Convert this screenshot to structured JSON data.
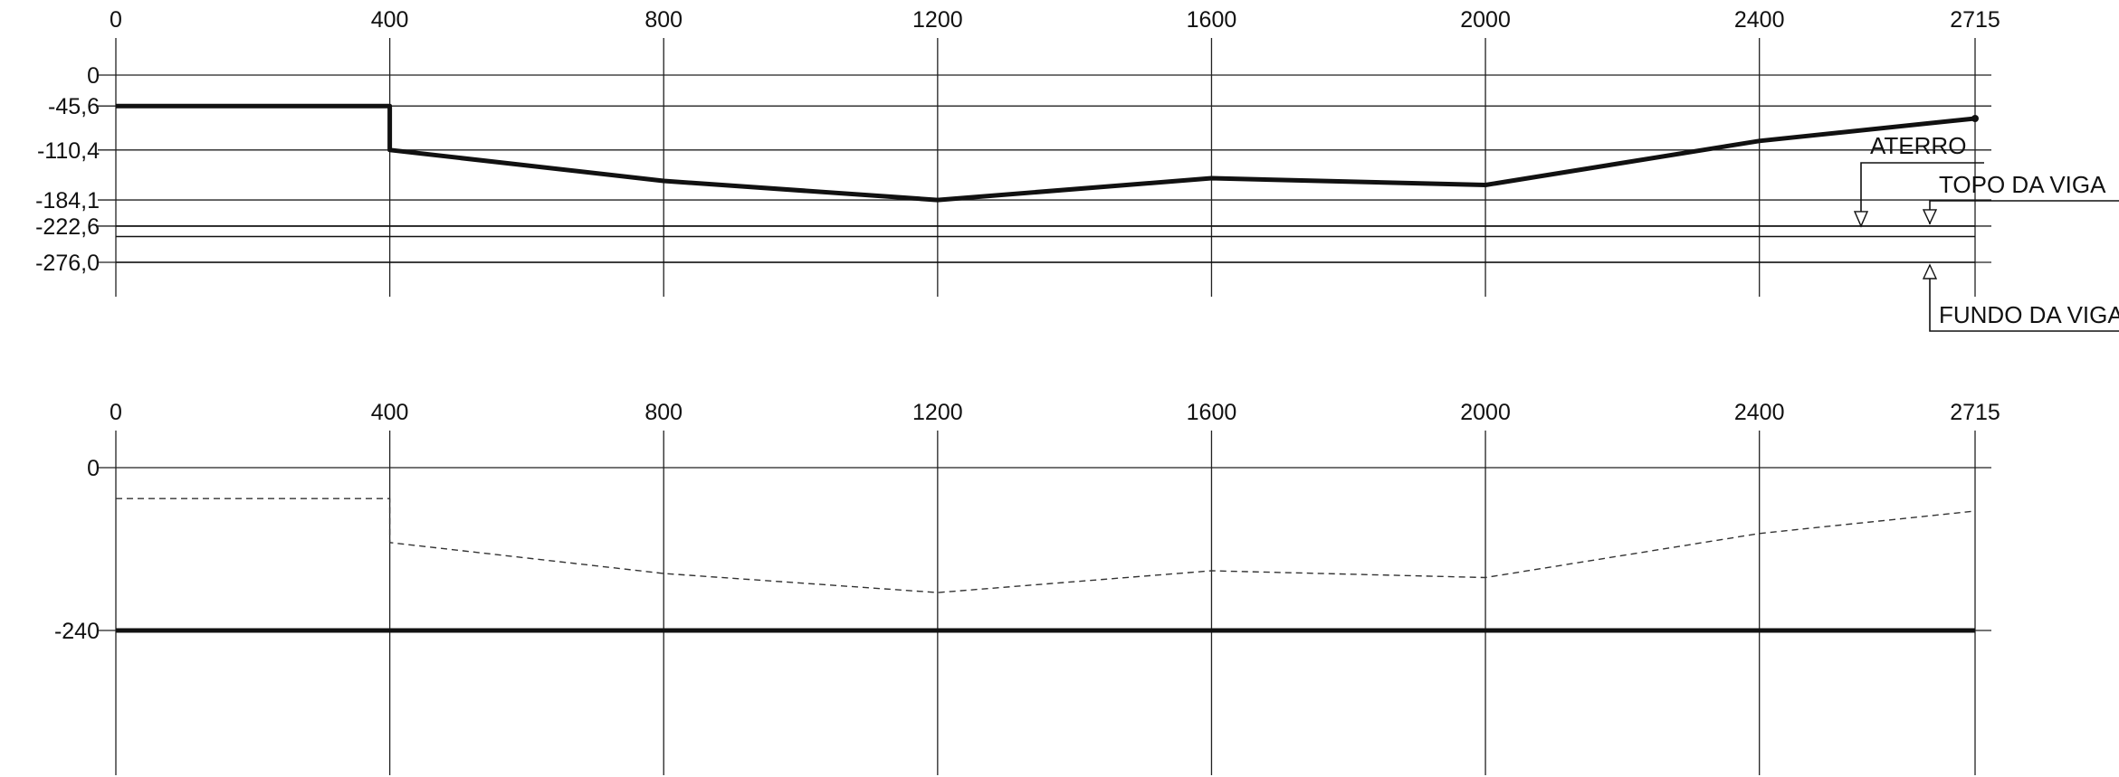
{
  "chart_data": [
    {
      "type": "line",
      "title": "",
      "xlabel": "",
      "ylabel": "",
      "xlim": [
        0,
        2715
      ],
      "ylim": [
        -276.0,
        0
      ],
      "x_ticks": [
        "0",
        "400",
        "800",
        "1200",
        "1600",
        "2000",
        "2400",
        "2715"
      ],
      "y_ticks": [
        {
          "value": 0,
          "label": "0"
        },
        {
          "value": -45.6,
          "label": "-45,6"
        },
        {
          "value": -110.4,
          "label": "-110,4"
        },
        {
          "value": -184.1,
          "label": "-184,1"
        },
        {
          "value": -222.6,
          "label": "-222,6"
        },
        {
          "value": -276.0,
          "label": "-276,0"
        }
      ],
      "series": [
        {
          "style": "bold-solid",
          "points": [
            [
              0,
              -45.6
            ],
            [
              400,
              -45.6
            ],
            [
              400,
              -110.4
            ],
            [
              800,
              -156
            ],
            [
              1200,
              -184.1
            ],
            [
              1600,
              -152
            ],
            [
              2000,
              -162
            ],
            [
              2400,
              -97
            ],
            [
              2715,
              -64
            ]
          ]
        },
        {
          "style": "solid",
          "points": [
            [
              0,
              -222.6
            ],
            [
              2715,
              -222.6
            ]
          ]
        },
        {
          "style": "solid",
          "points": [
            [
              0,
              -238
            ],
            [
              2715,
              -238
            ]
          ]
        },
        {
          "style": "solid",
          "points": [
            [
              0,
              -276.0
            ],
            [
              2715,
              -276.0
            ]
          ]
        }
      ],
      "annotations": [
        {
          "text": "ATERRO"
        },
        {
          "text": "TOPO DA VIGA"
        },
        {
          "text": "FUNDO DA VIGA"
        }
      ]
    },
    {
      "type": "line",
      "title": "",
      "xlabel": "",
      "ylabel": "",
      "xlim": [
        0,
        2715
      ],
      "ylim": [
        -240,
        0
      ],
      "x_ticks": [
        "0",
        "400",
        "800",
        "1200",
        "1600",
        "2000",
        "2400",
        "2715"
      ],
      "y_ticks": [
        {
          "value": 0,
          "label": "0"
        },
        {
          "value": -240,
          "label": "-240"
        }
      ],
      "series": [
        {
          "style": "dashed",
          "points": [
            [
              0,
              -45.6
            ],
            [
              400,
              -45.6
            ],
            [
              400,
              -110.4
            ],
            [
              800,
              -156
            ],
            [
              1200,
              -184.1
            ],
            [
              1600,
              -152
            ],
            [
              2000,
              -162
            ],
            [
              2400,
              -97
            ],
            [
              2715,
              -64
            ]
          ]
        },
        {
          "style": "bold-solid",
          "points": [
            [
              0,
              -240
            ],
            [
              2715,
              -240
            ]
          ]
        }
      ]
    }
  ]
}
